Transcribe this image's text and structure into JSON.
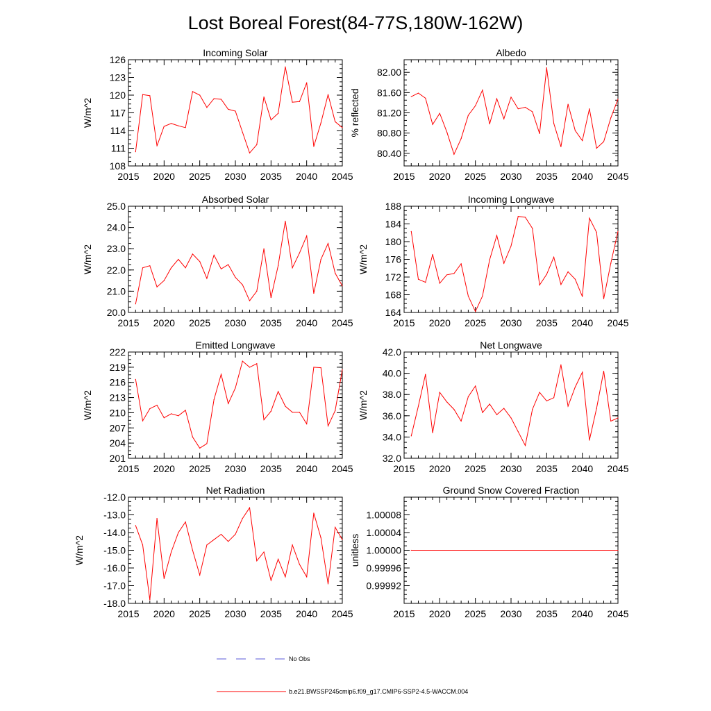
{
  "page_title": "Lost Boreal Forest(84-77S,180W-162W)",
  "line_color": "#ff0000",
  "obs_color": "#5a5ad8",
  "legend": {
    "obs_label": "No Obs",
    "model_label": "b.e21.BWSSP245cmip6.f09_g17.CMIP6-SSP2-4.5-WACCM.004"
  },
  "chart_data": [
    {
      "type": "line",
      "title": "Incoming Solar",
      "ylabel": "W/m^2",
      "xlabel": "",
      "xlim": [
        2015,
        2045
      ],
      "ylim": [
        108,
        126
      ],
      "yticks": [
        108,
        111,
        114,
        117,
        120,
        123,
        126
      ],
      "ytick_labels": [
        "108",
        "111",
        "114",
        "117",
        "120",
        "123",
        "126"
      ],
      "xticks": [
        2015,
        2020,
        2025,
        2030,
        2035,
        2040,
        2045
      ],
      "xtick_labels": [
        "2015",
        "2020",
        "2025",
        "2030",
        "2035",
        "2040",
        "2045"
      ],
      "x": [
        2016,
        2017,
        2018,
        2019,
        2020,
        2021,
        2022,
        2023,
        2024,
        2025,
        2026,
        2027,
        2028,
        2029,
        2030,
        2031,
        2032,
        2033,
        2034,
        2035,
        2036,
        2037,
        2038,
        2039,
        2040,
        2041,
        2042,
        2043,
        2044,
        2045
      ],
      "values": [
        110.4,
        120.1,
        119.9,
        111.4,
        114.7,
        115.2,
        114.8,
        114.5,
        120.6,
        120.0,
        117.9,
        119.4,
        119.3,
        117.6,
        117.3,
        113.7,
        110.2,
        111.6,
        119.7,
        115.8,
        116.9,
        124.8,
        118.8,
        118.9,
        122.1,
        111.3,
        115.3,
        120.1,
        115.5,
        114.5
      ],
      "series_name": "b.e21.BWSSP245cmip6.f09_g17.CMIP6-SSP2-4.5-WACCM.004"
    },
    {
      "type": "line",
      "title": "Albedo",
      "ylabel": "% reflected",
      "xlabel": "",
      "xlim": [
        2015,
        2045
      ],
      "ylim": [
        80.15,
        82.25
      ],
      "yticks": [
        80.4,
        80.8,
        81.2,
        81.6,
        82.0
      ],
      "ytick_labels": [
        "80.40",
        "80.80",
        "81.20",
        "81.60",
        "82.00"
      ],
      "xticks": [
        2015,
        2020,
        2025,
        2030,
        2035,
        2040,
        2045
      ],
      "xtick_labels": [
        "2015",
        "2020",
        "2025",
        "2030",
        "2035",
        "2040",
        "2045"
      ],
      "x": [
        2016,
        2017,
        2018,
        2019,
        2020,
        2021,
        2022,
        2023,
        2024,
        2025,
        2026,
        2027,
        2028,
        2029,
        2030,
        2031,
        2032,
        2033,
        2034,
        2035,
        2036,
        2037,
        2038,
        2039,
        2040,
        2041,
        2042,
        2043,
        2044,
        2045
      ],
      "values": [
        81.52,
        81.59,
        81.49,
        80.97,
        81.19,
        80.82,
        80.38,
        80.69,
        81.15,
        81.34,
        81.65,
        80.98,
        81.48,
        81.08,
        81.51,
        81.28,
        81.31,
        81.22,
        80.79,
        82.09,
        80.99,
        80.53,
        81.37,
        80.85,
        80.65,
        81.28,
        80.5,
        80.63,
        81.1,
        81.47
      ],
      "series_name": "b.e21.BWSSP245cmip6.f09_g17.CMIP6-SSP2-4.5-WACCM.004"
    },
    {
      "type": "line",
      "title": "Absorbed Solar",
      "ylabel": "W/m^2",
      "xlabel": "",
      "xlim": [
        2015,
        2045
      ],
      "ylim": [
        20.0,
        25.0
      ],
      "yticks": [
        20.0,
        21.0,
        22.0,
        23.0,
        24.0,
        25.0
      ],
      "ytick_labels": [
        "20.0",
        "21.0",
        "22.0",
        "23.0",
        "24.0",
        "25.0"
      ],
      "xticks": [
        2015,
        2020,
        2025,
        2030,
        2035,
        2040,
        2045
      ],
      "xtick_labels": [
        "2015",
        "2020",
        "2025",
        "2030",
        "2035",
        "2040",
        "2045"
      ],
      "x": [
        2016,
        2017,
        2018,
        2019,
        2020,
        2021,
        2022,
        2023,
        2024,
        2025,
        2026,
        2027,
        2028,
        2029,
        2030,
        2031,
        2032,
        2033,
        2034,
        2035,
        2036,
        2037,
        2038,
        2039,
        2040,
        2041,
        2042,
        2043,
        2044,
        2045
      ],
      "values": [
        20.4,
        22.1,
        22.2,
        21.2,
        21.5,
        22.1,
        22.5,
        22.1,
        22.75,
        22.4,
        21.6,
        22.7,
        22.05,
        22.25,
        21.65,
        21.3,
        20.55,
        21.0,
        23.0,
        20.7,
        22.2,
        24.3,
        22.1,
        22.8,
        23.6,
        20.9,
        22.5,
        23.25,
        21.85,
        21.25
      ],
      "series_name": "b.e21.BWSSP245cmip6.f09_g17.CMIP6-SSP2-4.5-WACCM.004"
    },
    {
      "type": "line",
      "title": "Incoming Longwave",
      "ylabel": "W/m^2",
      "xlabel": "",
      "xlim": [
        2015,
        2045
      ],
      "ylim": [
        164,
        188
      ],
      "yticks": [
        164,
        168,
        172,
        176,
        180,
        184,
        188
      ],
      "ytick_labels": [
        "164",
        "168",
        "172",
        "176",
        "180",
        "184",
        "188"
      ],
      "xticks": [
        2015,
        2020,
        2025,
        2030,
        2035,
        2040,
        2045
      ],
      "xtick_labels": [
        "2015",
        "2020",
        "2025",
        "2030",
        "2035",
        "2040",
        "2045"
      ],
      "x": [
        2016,
        2017,
        2018,
        2019,
        2020,
        2021,
        2022,
        2023,
        2024,
        2025,
        2026,
        2027,
        2028,
        2029,
        2030,
        2031,
        2032,
        2033,
        2034,
        2035,
        2036,
        2037,
        2038,
        2039,
        2040,
        2041,
        2042,
        2043,
        2044,
        2045
      ],
      "values": [
        182.3,
        171.5,
        170.8,
        177.1,
        170.6,
        172.5,
        172.8,
        175.0,
        167.7,
        164.2,
        167.7,
        175.9,
        181.4,
        175.1,
        179.0,
        185.7,
        185.5,
        183.0,
        170.2,
        172.6,
        176.5,
        170.3,
        173.2,
        171.5,
        167.6,
        185.3,
        182.1,
        167.1,
        175.1,
        182.3
      ],
      "series_name": "b.e21.BWSSP245cmip6.f09_g17.CMIP6-SSP2-4.5-WACCM.004"
    },
    {
      "type": "line",
      "title": "Emitted Longwave",
      "ylabel": "W/m^2",
      "xlabel": "",
      "xlim": [
        2015,
        2045
      ],
      "ylim": [
        201,
        222
      ],
      "yticks": [
        201,
        204,
        207,
        210,
        213,
        216,
        219,
        222
      ],
      "ytick_labels": [
        "201",
        "204",
        "207",
        "210",
        "213",
        "216",
        "219",
        "222"
      ],
      "xticks": [
        2015,
        2020,
        2025,
        2030,
        2035,
        2040,
        2045
      ],
      "xtick_labels": [
        "2015",
        "2020",
        "2025",
        "2030",
        "2035",
        "2040",
        "2045"
      ],
      "x": [
        2016,
        2017,
        2018,
        2019,
        2020,
        2021,
        2022,
        2023,
        2024,
        2025,
        2026,
        2027,
        2028,
        2029,
        2030,
        2031,
        2032,
        2033,
        2034,
        2035,
        2036,
        2037,
        2038,
        2039,
        2040,
        2041,
        2042,
        2043,
        2044,
        2045
      ],
      "values": [
        216.6,
        208.4,
        210.8,
        211.5,
        209.0,
        209.8,
        209.4,
        210.5,
        205.2,
        203.0,
        203.9,
        212.6,
        217.6,
        211.8,
        214.9,
        220.2,
        219.0,
        219.7,
        208.6,
        210.3,
        214.2,
        211.3,
        210.1,
        210.1,
        207.8,
        219.0,
        218.9,
        207.4,
        210.4,
        218.5
      ],
      "series_name": "b.e21.BWSSP245cmip6.f09_g17.CMIP6-SSP2-4.5-WACCM.004"
    },
    {
      "type": "line",
      "title": "Net Longwave",
      "ylabel": "W/m^2",
      "xlabel": "",
      "xlim": [
        2015,
        2045
      ],
      "ylim": [
        32.0,
        42.0
      ],
      "yticks": [
        32.0,
        34.0,
        36.0,
        38.0,
        40.0,
        42.0
      ],
      "ytick_labels": [
        "32.0",
        "34.0",
        "36.0",
        "38.0",
        "40.0",
        "42.0"
      ],
      "xticks": [
        2015,
        2020,
        2025,
        2030,
        2035,
        2040,
        2045
      ],
      "xtick_labels": [
        "2015",
        "2020",
        "2025",
        "2030",
        "2035",
        "2040",
        "2045"
      ],
      "x": [
        2016,
        2017,
        2018,
        2019,
        2020,
        2021,
        2022,
        2023,
        2024,
        2025,
        2026,
        2027,
        2028,
        2029,
        2030,
        2031,
        2032,
        2033,
        2034,
        2035,
        2036,
        2037,
        2038,
        2039,
        2040,
        2041,
        2042,
        2043,
        2044,
        2045
      ],
      "values": [
        34.1,
        36.9,
        39.9,
        34.4,
        38.2,
        37.3,
        36.6,
        35.5,
        37.8,
        38.8,
        36.3,
        37.1,
        36.1,
        36.7,
        35.8,
        34.5,
        33.2,
        36.6,
        38.2,
        37.4,
        37.7,
        40.8,
        36.9,
        38.7,
        40.1,
        33.7,
        36.7,
        40.2,
        35.5,
        35.8
      ],
      "series_name": "b.e21.BWSSP245cmip6.f09_g17.CMIP6-SSP2-4.5-WACCM.004"
    },
    {
      "type": "line",
      "title": "Net Radiation",
      "ylabel": "W/m^2",
      "xlabel": "",
      "xlim": [
        2015,
        2045
      ],
      "ylim": [
        -18.0,
        -12.0
      ],
      "yticks": [
        -18.0,
        -17.0,
        -16.0,
        -15.0,
        -14.0,
        -13.0,
        -12.0
      ],
      "ytick_labels": [
        "-18.0",
        "-17.0",
        "-16.0",
        "-15.0",
        "-14.0",
        "-13.0",
        "-12.0"
      ],
      "xticks": [
        2015,
        2020,
        2025,
        2030,
        2035,
        2040,
        2045
      ],
      "xtick_labels": [
        "2015",
        "2020",
        "2025",
        "2030",
        "2035",
        "2040",
        "2045"
      ],
      "x": [
        2016,
        2017,
        2018,
        2019,
        2020,
        2021,
        2022,
        2023,
        2024,
        2025,
        2026,
        2027,
        2028,
        2029,
        2030,
        2031,
        2032,
        2033,
        2034,
        2035,
        2036,
        2037,
        2038,
        2039,
        2040,
        2041,
        2042,
        2043,
        2044,
        2045
      ],
      "values": [
        -13.6,
        -14.7,
        -17.8,
        -13.2,
        -16.6,
        -15.1,
        -14.0,
        -13.4,
        -15.0,
        -16.4,
        -14.7,
        -14.4,
        -14.1,
        -14.5,
        -14.1,
        -13.2,
        -12.6,
        -15.6,
        -15.1,
        -16.7,
        -15.5,
        -16.5,
        -14.7,
        -15.8,
        -16.5,
        -12.9,
        -14.3,
        -16.9,
        -13.7,
        -14.4
      ],
      "series_name": "b.e21.BWSSP245cmip6.f09_g17.CMIP6-SSP2-4.5-WACCM.004"
    },
    {
      "type": "line",
      "title": "Ground Snow Covered Fraction",
      "ylabel": "unitless",
      "xlabel": "",
      "xlim": [
        2015,
        2045
      ],
      "ylim": [
        0.99988,
        1.00012
      ],
      "yticks": [
        0.99992,
        0.99996,
        1.0,
        1.00004,
        1.00008
      ],
      "ytick_labels": [
        "0.99992",
        "0.99996",
        "1.00000",
        "1.00004",
        "1.00008"
      ],
      "xticks": [
        2015,
        2020,
        2025,
        2030,
        2035,
        2040,
        2045
      ],
      "xtick_labels": [
        "2015",
        "2020",
        "2025",
        "2030",
        "2035",
        "2040",
        "2045"
      ],
      "x": [
        2016,
        2045
      ],
      "values": [
        1.0,
        1.0
      ],
      "series_name": "b.e21.BWSSP245cmip6.f09_g17.CMIP6-SSP2-4.5-WACCM.004"
    }
  ]
}
